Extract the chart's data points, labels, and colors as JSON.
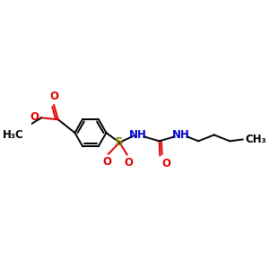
{
  "bg_color": "#ffffff",
  "bond_color": "#000000",
  "red_color": "#dd0000",
  "blue_color": "#0000cc",
  "olive_color": "#808000",
  "font_size": 8.5,
  "line_width": 1.4,
  "figsize": [
    3.0,
    3.0
  ],
  "dpi": 100,
  "xlim": [
    -2.0,
    4.2
  ],
  "ylim": [
    -1.5,
    1.5
  ]
}
